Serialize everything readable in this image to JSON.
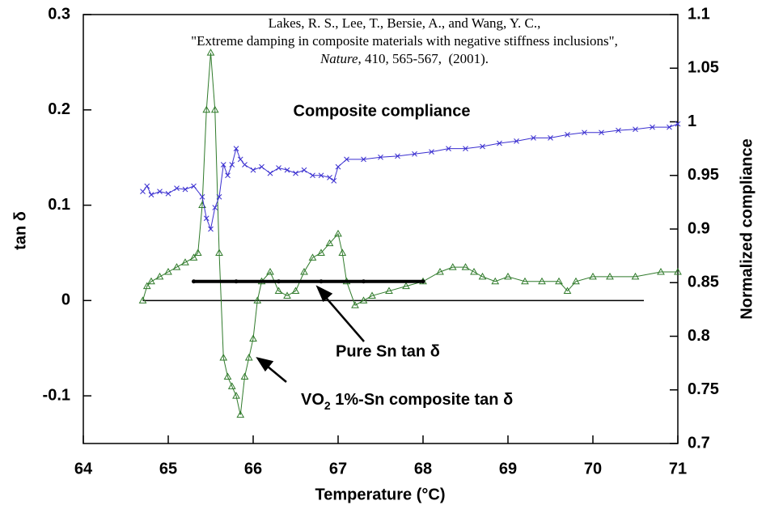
{
  "chart_data": {
    "type": "line",
    "xlabel": "Temperature (°C)",
    "ylabel": "tan δ",
    "y2label": "Normalized compliance",
    "xlim": [
      64,
      71
    ],
    "xticks": [
      64,
      65,
      66,
      67,
      68,
      69,
      70,
      71
    ],
    "ylim": [
      -0.15,
      0.3
    ],
    "yticks": [
      -0.1,
      0,
      0.1,
      0.2,
      0.3
    ],
    "y2lim": [
      0.7,
      1.1
    ],
    "y2ticks": [
      0.7,
      0.75,
      0.8,
      0.85,
      0.9,
      0.95,
      1,
      1.05,
      1.1
    ],
    "grid": false,
    "series": [
      {
        "color": "#2f7a2a",
        "marker": "triangle",
        "axis": "y",
        "x": [
          64.7,
          64.75,
          64.8,
          64.9,
          65.0,
          65.1,
          65.2,
          65.3,
          65.35,
          65.4,
          65.45,
          65.5,
          65.55,
          65.6,
          65.65,
          65.7,
          65.75,
          65.8,
          65.85,
          65.9,
          65.95,
          66.0,
          66.05,
          66.1,
          66.2,
          66.3,
          66.4,
          66.5,
          66.6,
          66.7,
          66.8,
          66.9,
          67.0,
          67.05,
          67.1,
          67.2,
          67.3,
          67.4,
          67.6,
          67.8,
          68.0,
          68.2,
          68.35,
          68.5,
          68.6,
          68.7,
          68.85,
          69.0,
          69.2,
          69.4,
          69.6,
          69.7,
          69.8,
          70.0,
          70.2,
          70.5,
          70.8,
          71.0
        ],
        "values": [
          0.0,
          0.015,
          0.02,
          0.025,
          0.03,
          0.035,
          0.04,
          0.045,
          0.05,
          0.1,
          0.2,
          0.26,
          0.2,
          0.05,
          -0.06,
          -0.08,
          -0.09,
          -0.1,
          -0.12,
          -0.08,
          -0.06,
          -0.04,
          0.0,
          0.02,
          0.03,
          0.01,
          0.005,
          0.01,
          0.03,
          0.045,
          0.05,
          0.06,
          0.07,
          0.05,
          0.02,
          -0.005,
          0.0,
          0.005,
          0.01,
          0.015,
          0.02,
          0.03,
          0.035,
          0.035,
          0.03,
          0.025,
          0.02,
          0.025,
          0.02,
          0.02,
          0.02,
          0.01,
          0.02,
          0.025,
          0.025,
          0.025,
          0.03,
          0.03
        ]
      },
      {
        "color": "#3a2fd0",
        "marker": "x",
        "axis": "y2",
        "x": [
          64.7,
          64.75,
          64.8,
          64.9,
          65.0,
          65.1,
          65.2,
          65.3,
          65.4,
          65.45,
          65.5,
          65.55,
          65.6,
          65.65,
          65.7,
          65.75,
          65.8,
          65.85,
          65.9,
          66.0,
          66.1,
          66.2,
          66.3,
          66.4,
          66.5,
          66.6,
          66.7,
          66.8,
          66.9,
          66.95,
          67.0,
          67.1,
          67.3,
          67.5,
          67.7,
          67.9,
          68.1,
          68.3,
          68.5,
          68.7,
          68.9,
          69.1,
          69.3,
          69.5,
          69.7,
          69.9,
          70.1,
          70.3,
          70.5,
          70.7,
          70.9,
          71.0
        ],
        "values": [
          0.935,
          0.94,
          0.932,
          0.935,
          0.933,
          0.938,
          0.937,
          0.94,
          0.93,
          0.91,
          0.9,
          0.92,
          0.93,
          0.96,
          0.95,
          0.96,
          0.975,
          0.965,
          0.96,
          0.955,
          0.958,
          0.952,
          0.957,
          0.955,
          0.952,
          0.955,
          0.95,
          0.95,
          0.948,
          0.945,
          0.958,
          0.965,
          0.965,
          0.967,
          0.968,
          0.97,
          0.972,
          0.975,
          0.975,
          0.977,
          0.98,
          0.982,
          0.985,
          0.985,
          0.988,
          0.99,
          0.99,
          0.992,
          0.993,
          0.995,
          0.995,
          0.998
        ]
      },
      {
        "color": "#000000",
        "marker": "circle",
        "axis": "y",
        "x": [
          65.3,
          65.8,
          66.3,
          66.8,
          67.3,
          68.0
        ],
        "values": [
          0.02,
          0.02,
          0.02,
          0.02,
          0.02,
          0.02
        ]
      }
    ],
    "reference_line": {
      "x": [
        64.7,
        70.6
      ],
      "values": [
        0,
        0
      ]
    },
    "annotations": {
      "compliance": "Composite compliance",
      "pure_sn": "Pure Sn tan δ",
      "composite": [
        "VO",
        "2",
        " 1%-Sn composite tan δ"
      ]
    },
    "source": {
      "authors": "Lakes, R. S., Lee, T., Bersie, A., and Wang, Y. C.,",
      "title": "\"Extreme damping in composite materials with negative stiffness inclusions\",",
      "journal": "Nature",
      "details": ", 410, 565-567,  (2001)."
    }
  }
}
